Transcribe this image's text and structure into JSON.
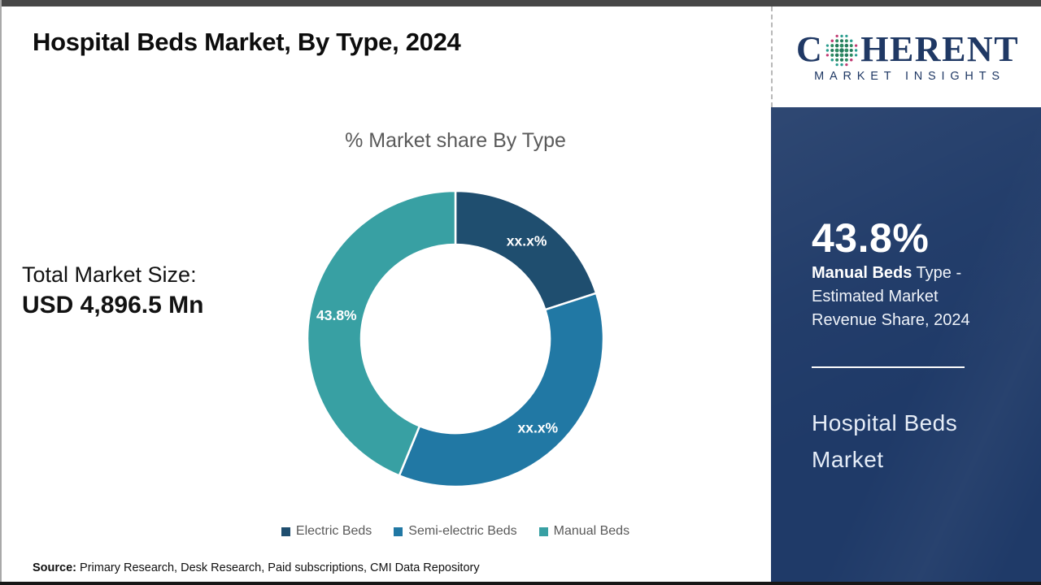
{
  "page": {
    "title": "Hospital Beds Market, By Type, 2024",
    "source_label": "Source:",
    "source_text": " Primary Research, Desk Research, Paid subscriptions, CMI Data Repository"
  },
  "logo": {
    "word_start": "C",
    "word_end": "HERENT",
    "subtitle": "MARKET INSIGHTS",
    "navy": "#1F3864"
  },
  "left_panel": {
    "market_size_label": "Total Market Size:",
    "market_size_value": "USD 4,896.5 Mn"
  },
  "sidebar": {
    "bg": "#1F3A68",
    "stat_value": "43.8%",
    "stat_desc_bold": "Manual Beds",
    "stat_desc_rest": " Type - Estimated Market Revenue Share, 2024",
    "market_name_line1": "Hospital Beds",
    "market_name_line2": "Market"
  },
  "chart_data": {
    "type": "pie",
    "subtype": "donut",
    "title": "% Market share By Type",
    "categories": [
      "Electric Beds",
      "Semi-electric Beds",
      "Manual Beds"
    ],
    "values": [
      20.0,
      36.2,
      43.8
    ],
    "display_labels": [
      "xx.x%",
      "xx.x%",
      "43.8%"
    ],
    "colors": [
      "#1F4E6F",
      "#2178A4",
      "#38A0A3"
    ],
    "inner_radius_ratio": 0.64,
    "start_angle_deg": 0,
    "direction": "clockwise",
    "legend_position": "bottom"
  }
}
